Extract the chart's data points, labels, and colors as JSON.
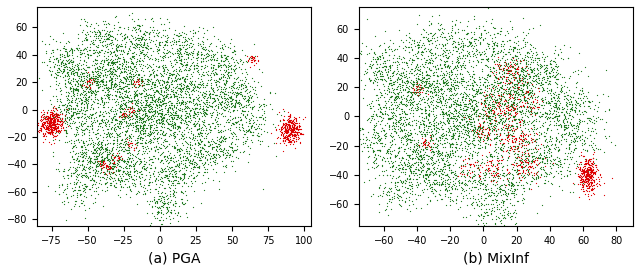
{
  "pga": {
    "title": "(a) PGA",
    "xlim": [
      -85,
      105
    ],
    "ylim": [
      -85,
      75
    ],
    "xticks": [
      -75,
      -50,
      -25,
      0,
      25,
      50,
      75,
      100
    ],
    "yticks": [
      -80,
      -60,
      -40,
      -20,
      0,
      20,
      40,
      60
    ],
    "green_color": "#1f7a1f",
    "red_color": "#dd0000",
    "green_clusters": [
      {
        "c": [
          0,
          -5
        ],
        "n": 800,
        "sx": 28,
        "sy": 22
      },
      {
        "c": [
          -10,
          10
        ],
        "n": 600,
        "sx": 22,
        "sy": 18
      },
      {
        "c": [
          -20,
          -10
        ],
        "n": 500,
        "sx": 18,
        "sy": 15
      },
      {
        "c": [
          20,
          5
        ],
        "n": 500,
        "sx": 20,
        "sy": 16
      },
      {
        "c": [
          -50,
          20
        ],
        "n": 300,
        "sx": 10,
        "sy": 8
      },
      {
        "c": [
          -60,
          0
        ],
        "n": 250,
        "sx": 8,
        "sy": 10
      },
      {
        "c": [
          -45,
          -35
        ],
        "n": 300,
        "sx": 10,
        "sy": 8
      },
      {
        "c": [
          -25,
          -45
        ],
        "n": 250,
        "sx": 10,
        "sy": 8
      },
      {
        "c": [
          10,
          -45
        ],
        "n": 250,
        "sx": 10,
        "sy": 8
      },
      {
        "c": [
          35,
          -30
        ],
        "n": 250,
        "sx": 10,
        "sy": 8
      },
      {
        "c": [
          50,
          10
        ],
        "n": 250,
        "sx": 10,
        "sy": 8
      },
      {
        "c": [
          40,
          35
        ],
        "n": 200,
        "sx": 10,
        "sy": 8
      },
      {
        "c": [
          15,
          45
        ],
        "n": 200,
        "sx": 10,
        "sy": 8
      },
      {
        "c": [
          -15,
          50
        ],
        "n": 200,
        "sx": 10,
        "sy": 8
      },
      {
        "c": [
          -40,
          50
        ],
        "n": 200,
        "sx": 10,
        "sy": 8
      },
      {
        "c": [
          -65,
          35
        ],
        "n": 200,
        "sx": 8,
        "sy": 8
      },
      {
        "c": [
          -55,
          -55
        ],
        "n": 150,
        "sx": 8,
        "sy": 8
      },
      {
        "c": [
          5,
          -70
        ],
        "n": 150,
        "sx": 8,
        "sy": 8
      },
      {
        "c": [
          -30,
          30
        ],
        "n": 200,
        "sx": 10,
        "sy": 8
      },
      {
        "c": [
          60,
          -10
        ],
        "n": 150,
        "sx": 8,
        "sy": 8
      }
    ],
    "red_clusters": [
      {
        "c": [
          -75,
          -10
        ],
        "n": 400,
        "sx": 4,
        "sy": 5
      },
      {
        "c": [
          90,
          -15
        ],
        "n": 350,
        "sx": 4,
        "sy": 5
      },
      {
        "c": [
          65,
          37
        ],
        "n": 30,
        "sx": 2,
        "sy": 2
      },
      {
        "c": [
          -50,
          20
        ],
        "n": 20,
        "sx": 2,
        "sy": 2
      },
      {
        "c": [
          -20,
          0
        ],
        "n": 15,
        "sx": 2,
        "sy": 2
      },
      {
        "c": [
          -30,
          -35
        ],
        "n": 20,
        "sx": 2,
        "sy": 2
      },
      {
        "c": [
          -40,
          -40
        ],
        "n": 20,
        "sx": 2,
        "sy": 2
      },
      {
        "c": [
          -35,
          -42
        ],
        "n": 20,
        "sx": 2,
        "sy": 2
      },
      {
        "c": [
          -15,
          20
        ],
        "n": 15,
        "sx": 2,
        "sy": 2
      },
      {
        "c": [
          -25,
          -3
        ],
        "n": 15,
        "sx": 2,
        "sy": 2
      },
      {
        "c": [
          -20,
          -25
        ],
        "n": 15,
        "sx": 2,
        "sy": 2
      }
    ]
  },
  "mixinf": {
    "title": "(b) MixInf",
    "xlim": [
      -75,
      90
    ],
    "ylim": [
      -75,
      75
    ],
    "xticks": [
      -60,
      -40,
      -20,
      0,
      20,
      40,
      60,
      80
    ],
    "yticks": [
      -60,
      -40,
      -20,
      0,
      20,
      40,
      60
    ],
    "green_color": "#1f7a1f",
    "red_color": "#dd0000",
    "green_clusters": [
      {
        "c": [
          0,
          -5
        ],
        "n": 700,
        "sx": 25,
        "sy": 20
      },
      {
        "c": [
          -10,
          10
        ],
        "n": 500,
        "sx": 20,
        "sy": 16
      },
      {
        "c": [
          -20,
          -10
        ],
        "n": 450,
        "sx": 16,
        "sy": 14
      },
      {
        "c": [
          20,
          5
        ],
        "n": 450,
        "sx": 18,
        "sy": 14
      },
      {
        "c": [
          -45,
          20
        ],
        "n": 300,
        "sx": 10,
        "sy": 8
      },
      {
        "c": [
          -55,
          0
        ],
        "n": 250,
        "sx": 8,
        "sy": 10
      },
      {
        "c": [
          -40,
          -30
        ],
        "n": 280,
        "sx": 10,
        "sy": 8
      },
      {
        "c": [
          -20,
          -45
        ],
        "n": 230,
        "sx": 10,
        "sy": 8
      },
      {
        "c": [
          10,
          -45
        ],
        "n": 230,
        "sx": 10,
        "sy": 8
      },
      {
        "c": [
          35,
          -30
        ],
        "n": 230,
        "sx": 10,
        "sy": 8
      },
      {
        "c": [
          50,
          5
        ],
        "n": 230,
        "sx": 10,
        "sy": 8
      },
      {
        "c": [
          38,
          30
        ],
        "n": 180,
        "sx": 10,
        "sy": 8
      },
      {
        "c": [
          15,
          45
        ],
        "n": 180,
        "sx": 10,
        "sy": 8
      },
      {
        "c": [
          -10,
          50
        ],
        "n": 180,
        "sx": 10,
        "sy": 8
      },
      {
        "c": [
          -35,
          48
        ],
        "n": 180,
        "sx": 10,
        "sy": 8
      },
      {
        "c": [
          -60,
          35
        ],
        "n": 180,
        "sx": 8,
        "sy": 8
      },
      {
        "c": [
          -50,
          -50
        ],
        "n": 140,
        "sx": 8,
        "sy": 8
      },
      {
        "c": [
          5,
          -65
        ],
        "n": 140,
        "sx": 8,
        "sy": 8
      },
      {
        "c": [
          -25,
          28
        ],
        "n": 180,
        "sx": 10,
        "sy": 8
      },
      {
        "c": [
          55,
          -15
        ],
        "n": 140,
        "sx": 8,
        "sy": 8
      },
      {
        "c": [
          -65,
          -20
        ],
        "n": 130,
        "sx": 8,
        "sy": 8
      },
      {
        "c": [
          20,
          25
        ],
        "n": 200,
        "sx": 8,
        "sy": 8
      }
    ],
    "red_clusters": [
      {
        "c": [
          63,
          -40
        ],
        "n": 350,
        "sx": 3,
        "sy": 6
      },
      {
        "c": [
          15,
          30
        ],
        "n": 80,
        "sx": 5,
        "sy": 5
      },
      {
        "c": [
          10,
          5
        ],
        "n": 120,
        "sx": 8,
        "sy": 8
      },
      {
        "c": [
          20,
          -15
        ],
        "n": 100,
        "sx": 6,
        "sy": 6
      },
      {
        "c": [
          25,
          -35
        ],
        "n": 80,
        "sx": 5,
        "sy": 5
      },
      {
        "c": [
          5,
          -35
        ],
        "n": 60,
        "sx": 5,
        "sy": 5
      },
      {
        "c": [
          -35,
          -18
        ],
        "n": 25,
        "sx": 2,
        "sy": 2
      },
      {
        "c": [
          -40,
          18
        ],
        "n": 20,
        "sx": 2,
        "sy": 2
      },
      {
        "c": [
          0,
          -10
        ],
        "n": 30,
        "sx": 3,
        "sy": 3
      },
      {
        "c": [
          28,
          10
        ],
        "n": 40,
        "sx": 4,
        "sy": 4
      },
      {
        "c": [
          -10,
          -35
        ],
        "n": 25,
        "sx": 3,
        "sy": 3
      }
    ]
  },
  "bg_color": "#ffffff",
  "point_size": 0.8,
  "point_size_red": 0.8,
  "alpha_green": 1.0,
  "alpha_red": 1.0
}
